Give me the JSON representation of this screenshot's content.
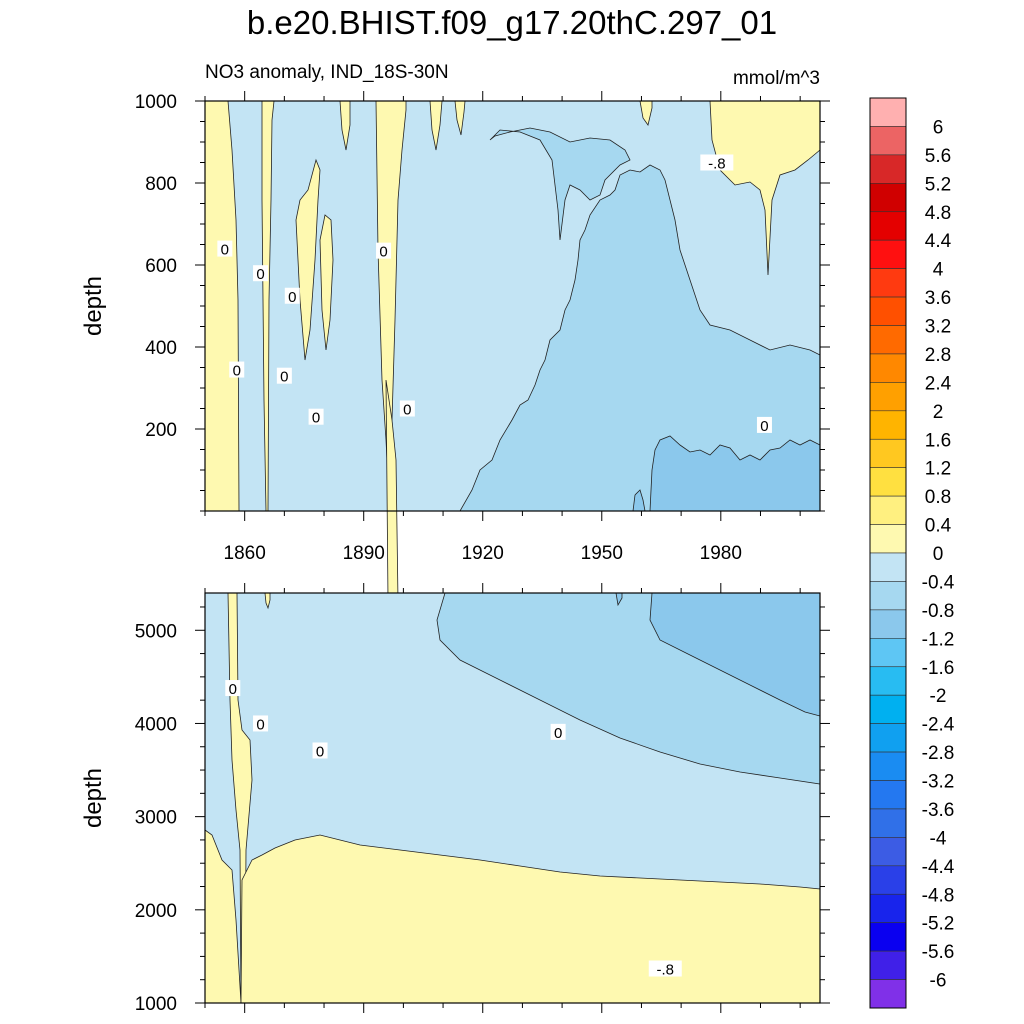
{
  "figure": {
    "title": "b.e20.BHIST.f09_g17.20thC.297_01",
    "subtitle_left": "NO3 anomaly, IND_18S-30N",
    "subtitle_right": "mmol/m^3"
  },
  "colors": {
    "pos_0_04": "#fef9b0",
    "neg_0_04": "#c3e4f4",
    "neg_04_08": "#a6d8f0",
    "neg_08_12": "#8bc8ec"
  },
  "chart_data": [
    {
      "type": "heatmap",
      "panel": "top",
      "title": "",
      "xlabel": "",
      "ylabel": "depth",
      "xlim": [
        1850,
        2005
      ],
      "ylim": [
        1000,
        0
      ],
      "x_ticks": [
        1860,
        1890,
        1920,
        1950,
        1980
      ],
      "y_ticks": [
        200,
        400,
        600,
        800,
        1000
      ],
      "contour_labels": [
        {
          "text": "0",
          "x": 1855,
          "y": 640
        },
        {
          "text": "0",
          "x": 1858,
          "y": 345
        },
        {
          "text": "0",
          "x": 1864,
          "y": 580
        },
        {
          "text": "0",
          "x": 1870,
          "y": 330
        },
        {
          "text": "0",
          "x": 1872,
          "y": 525
        },
        {
          "text": "0",
          "x": 1878,
          "y": 230
        },
        {
          "text": "0",
          "x": 1895,
          "y": 635
        },
        {
          "text": "0",
          "x": 1901,
          "y": 250
        },
        {
          "text": "-.8",
          "x": 1979,
          "y": 850
        },
        {
          "text": "0",
          "x": 1991,
          "y": 210
        }
      ]
    },
    {
      "type": "heatmap",
      "panel": "bottom",
      "title": "",
      "xlabel": "",
      "ylabel": "depth",
      "xlim": [
        1850,
        2005
      ],
      "ylim": [
        5400,
        1000
      ],
      "x_ticks": [
        1860,
        1890,
        1920,
        1950,
        1980
      ],
      "y_ticks": [
        1000,
        2000,
        3000,
        4000,
        5000
      ],
      "contour_labels": [
        {
          "text": "0",
          "x": 1857,
          "y": 4380
        },
        {
          "text": "0",
          "x": 1864,
          "y": 4000
        },
        {
          "text": "0",
          "x": 1879,
          "y": 3710
        },
        {
          "text": "0",
          "x": 1939,
          "y": 3910
        },
        {
          "text": "-.8",
          "x": 1966,
          "y": 1370
        }
      ]
    }
  ],
  "colorbar": {
    "labels": [
      "6",
      "5.6",
      "5.2",
      "4.8",
      "4.4",
      "4",
      "3.6",
      "3.2",
      "2.8",
      "2.4",
      "2",
      "1.6",
      "1.2",
      "0.8",
      "0.4",
      "0",
      "-0.4",
      "-0.8",
      "-1.2",
      "-1.6",
      "-2",
      "-2.4",
      "-2.8",
      "-3.2",
      "-3.6",
      "-4",
      "-4.4",
      "-4.8",
      "-5.2",
      "-5.6",
      "-6"
    ],
    "colors": [
      "#ffb0b0",
      "#ec6464",
      "#d82828",
      "#d00000",
      "#e40000",
      "#ff1010",
      "#ff3a10",
      "#ff5000",
      "#ff6a00",
      "#ff8800",
      "#ffa000",
      "#ffb400",
      "#ffc820",
      "#ffe040",
      "#fff080",
      "#fef9b0",
      "#c3e4f4",
      "#a6d8f0",
      "#8bc8ec",
      "#5ec6f4",
      "#28bcf2",
      "#00b0f0",
      "#10a0f0",
      "#1a8cf2",
      "#2478f0",
      "#3070e8",
      "#3c5ce4",
      "#2a40e8",
      "#1824ec",
      "#0a00f0",
      "#4020e8",
      "#8030e8"
    ]
  }
}
